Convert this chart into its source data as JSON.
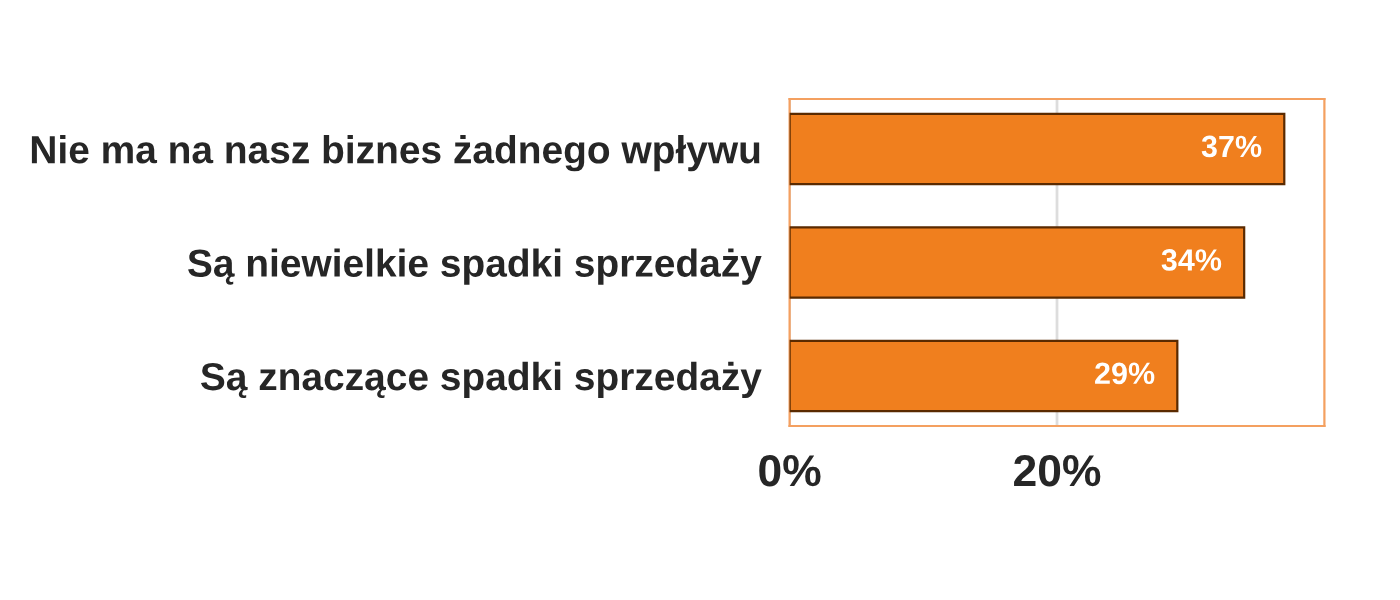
{
  "chart_data": {
    "type": "bar",
    "orientation": "horizontal",
    "categories": [
      "Nie ma na nasz biznes żadnego wpływu",
      "Są niewielkie spadki sprzedaży",
      "Są znaczące spadki sprzedaży"
    ],
    "values": [
      37,
      34,
      29
    ],
    "value_labels": [
      "37%",
      "34%",
      "29%"
    ],
    "color": "#f07f1e",
    "xlim": [
      0,
      40
    ],
    "xticks": [
      {
        "value": 0,
        "label": "0%"
      },
      {
        "value": 20,
        "label": "20%"
      }
    ],
    "grid": "x"
  }
}
